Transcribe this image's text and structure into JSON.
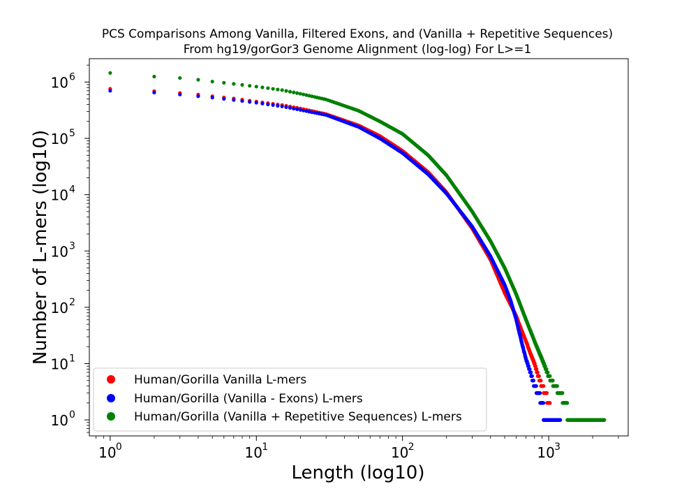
{
  "chart_data": {
    "type": "scatter",
    "title": "PCS Comparisons Among Vanilla, Filtered Exons, and (Vanilla + Repetitive Sequences)",
    "subtitle": "From hg19/gorGor3 Genome Alignment (log-log) For L>=1",
    "xlabel": "Length (log10)",
    "ylabel": "Number of L-mers (log10)",
    "xscale": "log",
    "yscale": "log",
    "xlim": [
      0.72,
      3500
    ],
    "ylim": [
      0.52,
      2600000
    ],
    "xticks": [
      {
        "value": 1,
        "base": "10",
        "exp": "0"
      },
      {
        "value": 10,
        "base": "10",
        "exp": "1"
      },
      {
        "value": 100,
        "base": "10",
        "exp": "2"
      },
      {
        "value": 1000,
        "base": "10",
        "exp": "3"
      }
    ],
    "yticks": [
      {
        "value": 1,
        "base": "10",
        "exp": "0"
      },
      {
        "value": 10,
        "base": "10",
        "exp": "1"
      },
      {
        "value": 100,
        "base": "10",
        "exp": "2"
      },
      {
        "value": 1000,
        "base": "10",
        "exp": "3"
      },
      {
        "value": 10000,
        "base": "10",
        "exp": "4"
      },
      {
        "value": 100000,
        "base": "10",
        "exp": "5"
      },
      {
        "value": 1000000,
        "base": "10",
        "exp": "6"
      }
    ],
    "grid": false,
    "legend_position": "lower-left",
    "series": [
      {
        "name": "Human/Gorilla Vanilla L-mers",
        "color": "#ff0000",
        "points": [
          [
            1,
            760000
          ],
          [
            2,
            690000
          ],
          [
            3,
            640000
          ],
          [
            4,
            600000
          ],
          [
            5,
            560000
          ],
          [
            7,
            510000
          ],
          [
            10,
            450000
          ],
          [
            15,
            390000
          ],
          [
            20,
            340000
          ],
          [
            30,
            270000
          ],
          [
            50,
            170000
          ],
          [
            70,
            110000
          ],
          [
            100,
            60000
          ],
          [
            150,
            25000
          ],
          [
            200,
            11000
          ],
          [
            300,
            2500
          ],
          [
            400,
            700
          ],
          [
            500,
            180
          ],
          [
            600,
            70
          ],
          [
            650,
            40
          ],
          [
            700,
            25
          ],
          [
            750,
            15
          ],
          [
            800,
            10
          ],
          [
            850,
            6
          ],
          [
            900,
            4
          ],
          [
            950,
            3
          ],
          [
            1000,
            2
          ],
          [
            1050,
            1
          ]
        ]
      },
      {
        "name": "Human/Gorilla (Vanilla - Exons) L-mers",
        "color": "#0000ff",
        "points": [
          [
            1,
            700000
          ],
          [
            2,
            650000
          ],
          [
            3,
            600000
          ],
          [
            4,
            560000
          ],
          [
            5,
            530000
          ],
          [
            7,
            480000
          ],
          [
            10,
            430000
          ],
          [
            15,
            370000
          ],
          [
            20,
            320000
          ],
          [
            30,
            260000
          ],
          [
            50,
            160000
          ],
          [
            70,
            100000
          ],
          [
            100,
            55000
          ],
          [
            150,
            23000
          ],
          [
            200,
            10500
          ],
          [
            300,
            2700
          ],
          [
            400,
            800
          ],
          [
            500,
            250
          ],
          [
            550,
            130
          ],
          [
            600,
            60
          ],
          [
            650,
            25
          ],
          [
            700,
            12
          ],
          [
            750,
            7
          ],
          [
            800,
            4
          ],
          [
            850,
            3
          ],
          [
            900,
            2
          ],
          [
            950,
            1
          ],
          [
            1050,
            1
          ],
          [
            1200,
            1
          ]
        ]
      },
      {
        "name": "Human/Gorilla (Vanilla + Repetitive Sequences) L-mers",
        "color": "#008000",
        "points": [
          [
            1,
            1450000
          ],
          [
            2,
            1250000
          ],
          [
            3,
            1180000
          ],
          [
            4,
            1100000
          ],
          [
            5,
            1020000
          ],
          [
            7,
            930000
          ],
          [
            10,
            830000
          ],
          [
            15,
            720000
          ],
          [
            20,
            620000
          ],
          [
            30,
            490000
          ],
          [
            50,
            310000
          ],
          [
            70,
            200000
          ],
          [
            100,
            120000
          ],
          [
            150,
            50000
          ],
          [
            200,
            22000
          ],
          [
            300,
            5000
          ],
          [
            400,
            1500
          ],
          [
            500,
            500
          ],
          [
            600,
            170
          ],
          [
            700,
            60
          ],
          [
            800,
            25
          ],
          [
            900,
            12
          ],
          [
            1000,
            6
          ],
          [
            1100,
            4
          ],
          [
            1200,
            3
          ],
          [
            1300,
            2
          ],
          [
            1400,
            1
          ],
          [
            1600,
            1
          ],
          [
            1800,
            1
          ],
          [
            2000,
            1
          ],
          [
            2200,
            1
          ],
          [
            2400,
            1
          ]
        ]
      }
    ]
  }
}
